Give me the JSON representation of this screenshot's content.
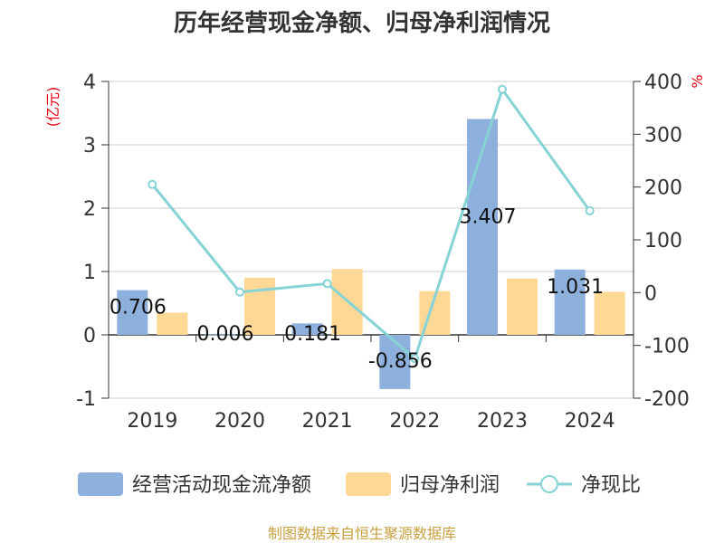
{
  "chart_data": {
    "type": "bar",
    "title": "历年经营现金净额、归母净利润情况",
    "categories": [
      "2019",
      "2020",
      "2021",
      "2022",
      "2023",
      "2024"
    ],
    "series": [
      {
        "name": "经营活动现金流净额",
        "type": "bar",
        "axis": "left",
        "color": "#8eb0dc",
        "values": [
          0.706,
          0.006,
          0.181,
          -0.856,
          3.407,
          1.031
        ]
      },
      {
        "name": "归母净利润",
        "type": "bar",
        "axis": "left",
        "color": "#ffd896",
        "values": [
          0.35,
          0.9,
          1.04,
          0.69,
          0.89,
          0.68
        ]
      },
      {
        "name": "净现比",
        "type": "line",
        "axis": "right",
        "color": "#86d3d6",
        "values": [
          205,
          1,
          17,
          -125,
          385,
          155
        ]
      }
    ],
    "data_labels": [
      "0.706",
      "0.006",
      "0.181",
      "-0.856",
      "3.407",
      "1.031"
    ],
    "y_left": {
      "unit": "(亿元)",
      "ylim": [
        -1,
        4
      ],
      "ticks": [
        "-1",
        "0",
        "1",
        "2",
        "3",
        "4"
      ]
    },
    "y_right": {
      "unit": "%",
      "ylim": [
        -200,
        400
      ],
      "ticks": [
        "-200",
        "-100",
        "0",
        "100",
        "200",
        "300",
        "400"
      ]
    },
    "grid": true,
    "legend_position": "bottom",
    "source": "制图数据来自恒生聚源数据库"
  }
}
